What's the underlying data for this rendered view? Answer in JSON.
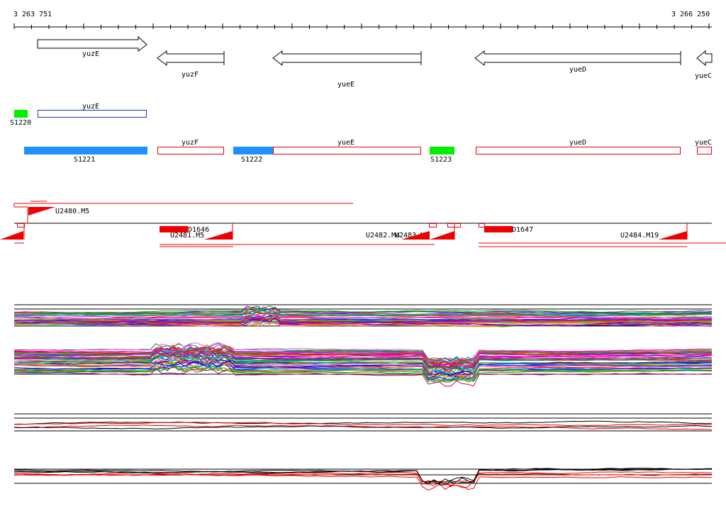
{
  "ruler": {
    "start": "3 263 751",
    "end": "3 266 250"
  },
  "genes_top": [
    {
      "name": "yuzE",
      "strand": "+"
    },
    {
      "name": "yuzF",
      "strand": "-"
    },
    {
      "name": "yueE",
      "strand": "-"
    },
    {
      "name": "yueD",
      "strand": "-"
    },
    {
      "name": "yueC",
      "strand": "-"
    }
  ],
  "features_row1": [
    {
      "label": "S1220",
      "kind": "green"
    },
    {
      "label": "yuzE",
      "kind": "blue-outline"
    }
  ],
  "features_row2": [
    {
      "label": "S1221",
      "kind": "blue"
    },
    {
      "label": "yuzF",
      "kind": "red-outline"
    },
    {
      "label": "S1222",
      "kind": "blue"
    },
    {
      "label": "yueE",
      "kind": "red-outline"
    },
    {
      "label": "S1223",
      "kind": "green"
    },
    {
      "label": "yueD",
      "kind": "red-outline"
    },
    {
      "label": "yueC",
      "kind": "red-outline"
    }
  ],
  "transcripts": [
    {
      "label": "U2480.M5"
    },
    {
      "label": "D1646"
    },
    {
      "label": "U2481.M5"
    },
    {
      "label": "U2482.M4"
    },
    {
      "label": "U2483.M5"
    },
    {
      "label": "D1647"
    },
    {
      "label": "U2484.M19"
    }
  ],
  "colors": {
    "gene_arrow": "#000000",
    "blue_feature": "#1e90ff",
    "green_feature": "#00ee00",
    "red_feature": "#ee0000"
  }
}
